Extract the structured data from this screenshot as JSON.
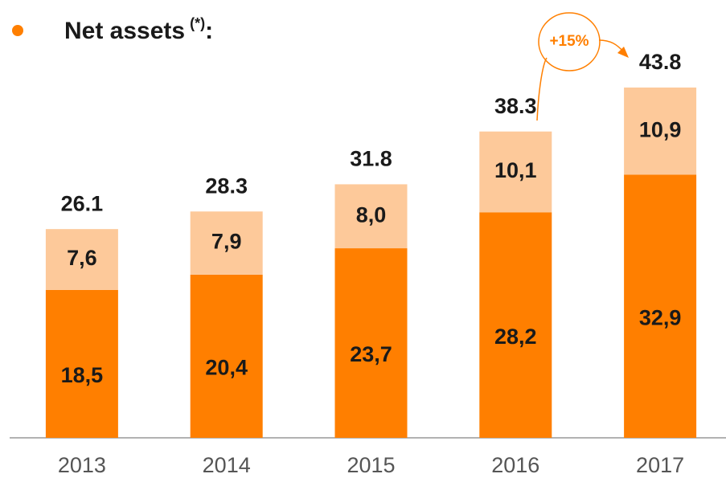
{
  "chart_data": {
    "type": "stacked_bar",
    "title": "Net assets",
    "title_superscript": "(*)",
    "title_suffix": ":",
    "categories": [
      "2013",
      "2014",
      "2015",
      "2016",
      "2017"
    ],
    "series": [
      {
        "color": "#ff7f00",
        "values": [
          18.5,
          20.4,
          23.7,
          28.2,
          32.9
        ],
        "value_labels": [
          "18,5",
          "20,4",
          "23,7",
          "28,2",
          "32,9"
        ]
      },
      {
        "color": "#fdc99a",
        "values": [
          7.6,
          7.9,
          8.0,
          10.1,
          10.9
        ],
        "value_labels": [
          "7,6",
          "7,9",
          "8,0",
          "10,1",
          "10,9"
        ]
      }
    ],
    "totals": [
      26.1,
      28.3,
      31.8,
      38.3,
      43.8
    ],
    "annotation": "+15%",
    "ylim": [
      0,
      45
    ]
  }
}
